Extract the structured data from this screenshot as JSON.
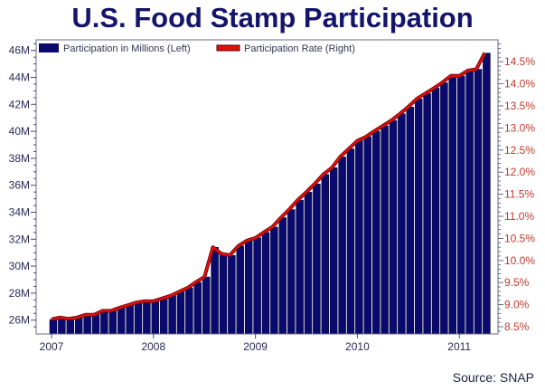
{
  "chart_data": {
    "type": "bar",
    "title": "U.S. Food Stamp Participation",
    "source": "Source: SNAP",
    "xlabel": "",
    "ylabel": "",
    "x_tick_labels": [
      "2007",
      "2008",
      "2009",
      "2010",
      "2011"
    ],
    "left_axis": {
      "ylim": [
        25,
        46.8
      ],
      "ticks": [
        "26M",
        "28M",
        "30M",
        "32M",
        "34M",
        "36M",
        "38M",
        "40M",
        "42M",
        "44M",
        "46M"
      ],
      "tick_values": [
        26,
        28,
        30,
        32,
        34,
        36,
        38,
        40,
        42,
        44,
        46
      ]
    },
    "right_axis": {
      "ylim": [
        8.35,
        14.95
      ],
      "ticks": [
        "8.5%",
        "9.0%",
        "9.5%",
        "10.0%",
        "10.5%",
        "11.0%",
        "11.5%",
        "12.0%",
        "12.5%",
        "13.0%",
        "13.5%",
        "14.0%",
        "14.5%"
      ],
      "tick_values": [
        8.5,
        9.0,
        9.5,
        10.0,
        10.5,
        11.0,
        11.5,
        12.0,
        12.5,
        13.0,
        13.5,
        14.0,
        14.5
      ]
    },
    "legend": {
      "placement": "top-left",
      "entries": [
        "Participation in Millions (Left)",
        "Participation Rate (Right)"
      ]
    },
    "x_start": "2007-01",
    "frequency": "monthly",
    "series": [
      {
        "name": "Participation in Millions (Left)",
        "type": "bar",
        "color": "#0a0a6e",
        "axis": "left",
        "values": [
          26.05,
          26.2,
          26.1,
          26.2,
          26.4,
          26.4,
          26.7,
          26.7,
          26.9,
          27.1,
          27.3,
          27.4,
          27.4,
          27.6,
          27.8,
          28.1,
          28.4,
          28.8,
          29.2,
          31.4,
          30.9,
          30.8,
          31.5,
          31.9,
          32.1,
          32.5,
          32.9,
          33.6,
          34.2,
          34.9,
          35.5,
          36.1,
          36.8,
          37.3,
          38.1,
          38.7,
          39.3,
          39.6,
          40.0,
          40.4,
          40.8,
          41.3,
          41.8,
          42.4,
          42.8,
          43.2,
          43.6,
          44.1,
          44.1,
          44.5,
          44.6,
          45.8
        ]
      },
      {
        "name": "Participation Rate (Right)",
        "type": "line",
        "color": "#e01010",
        "axis": "right",
        "values": [
          8.67,
          8.71,
          8.68,
          8.71,
          8.77,
          8.77,
          8.86,
          8.86,
          8.93,
          8.99,
          9.05,
          9.08,
          9.08,
          9.14,
          9.2,
          9.29,
          9.38,
          9.51,
          9.63,
          10.3,
          10.15,
          10.12,
          10.33,
          10.45,
          10.51,
          10.64,
          10.76,
          10.97,
          11.16,
          11.37,
          11.55,
          11.74,
          11.95,
          12.1,
          12.35,
          12.53,
          12.71,
          12.8,
          12.93,
          13.05,
          13.17,
          13.32,
          13.48,
          13.66,
          13.78,
          13.9,
          14.03,
          14.18,
          14.18,
          14.3,
          14.33,
          14.7
        ]
      }
    ]
  }
}
